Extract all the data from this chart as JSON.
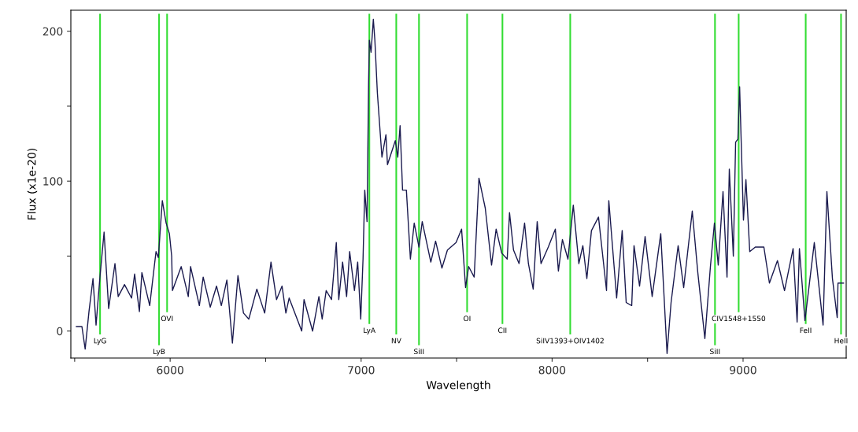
{
  "chart_data": {
    "type": "line",
    "xlabel": "Wavelength",
    "ylabel": "Flux (x1e-20)",
    "xlim": [
      5480,
      9540
    ],
    "ylim": [
      -18,
      214
    ],
    "xticks": [
      {
        "value": 5500,
        "label": null
      },
      6000,
      {
        "value": 6500,
        "label": null
      },
      7000,
      {
        "value": 7500,
        "label": null
      },
      8000,
      {
        "value": 8500,
        "label": null
      },
      9000
    ],
    "yticks": [
      0,
      {
        "value": 50,
        "label": null
      },
      100,
      {
        "value": 150,
        "label": null
      },
      200
    ],
    "grid": false,
    "legend": false,
    "marker": "none",
    "line_style": "solid",
    "series": [
      {
        "color": "#1a1a4e",
        "x": [
          5509,
          5538,
          5555,
          5575,
          5596,
          5612,
          5633,
          5654,
          5678,
          5711,
          5728,
          5761,
          5798,
          5814,
          5839,
          5852,
          5893,
          5926,
          5938,
          5959,
          5979,
          5996,
          6008,
          6012,
          6058,
          6095,
          6107,
          6153,
          6173,
          6210,
          6243,
          6268,
          6297,
          6326,
          6355,
          6384,
          6412,
          6454,
          6495,
          6528,
          6557,
          6586,
          6606,
          6623,
          6689,
          6701,
          6746,
          6779,
          6796,
          6817,
          6845,
          6870,
          6883,
          6903,
          6924,
          6940,
          6965,
          6982,
          6998,
          7010,
          7019,
          7031,
          7039,
          7043,
          7052,
          7064,
          7072,
          7085,
          7109,
          7130,
          7138,
          7179,
          7192,
          7204,
          7217,
          7237,
          7258,
          7278,
          7303,
          7320,
          7365,
          7390,
          7423,
          7452,
          7497,
          7526,
          7547,
          7563,
          7592,
          7617,
          7650,
          7683,
          7707,
          7736,
          7765,
          7777,
          7798,
          7827,
          7856,
          7876,
          7901,
          7922,
          7942,
          7980,
          8017,
          8033,
          8054,
          8083,
          8111,
          8140,
          8161,
          8182,
          8206,
          8243,
          8285,
          8297,
          8338,
          8367,
          8388,
          8417,
          8429,
          8458,
          8487,
          8524,
          8569,
          8602,
          8623,
          8660,
          8689,
          8734,
          8763,
          8800,
          8829,
          8850,
          8870,
          8895,
          8916,
          8928,
          8949,
          8961,
          8973,
          8982,
          9002,
          9015,
          9035,
          9064,
          9109,
          9138,
          9180,
          9217,
          9262,
          9283,
          9295,
          9324,
          9373,
          9419,
          9439,
          9468,
          9493,
          9497,
          9526
        ],
        "values": [
          3,
          3,
          -12,
          13,
          35,
          4,
          37,
          66,
          15,
          45,
          23,
          31,
          22,
          38,
          13,
          39,
          17,
          53,
          49,
          87,
          72,
          65,
          50,
          27,
          43,
          23,
          43,
          17,
          36,
          16,
          30,
          17,
          34,
          -8,
          37,
          12,
          8,
          28,
          12,
          46,
          21,
          30,
          12,
          22,
          0,
          21,
          0,
          23,
          8,
          27,
          21,
          59,
          21,
          46,
          23,
          53,
          27,
          46,
          8,
          48,
          94,
          73,
          164,
          194,
          186,
          208,
          194,
          159,
          116,
          131,
          111,
          127,
          116,
          137,
          94,
          94,
          48,
          72,
          56,
          73,
          46,
          60,
          42,
          54,
          59,
          68,
          29,
          43,
          36,
          102,
          82,
          44,
          68,
          52,
          48,
          79,
          54,
          45,
          72,
          45,
          28,
          73,
          45,
          56,
          68,
          40,
          61,
          48,
          84,
          45,
          57,
          35,
          67,
          76,
          27,
          87,
          22,
          67,
          19,
          17,
          57,
          30,
          63,
          23,
          65,
          -15,
          19,
          57,
          29,
          80,
          39,
          -5,
          43,
          72,
          44,
          93,
          36,
          108,
          50,
          126,
          128,
          163,
          74,
          101,
          53,
          56,
          56,
          32,
          47,
          27,
          55,
          6,
          55,
          7,
          59,
          4,
          93,
          35,
          9,
          32,
          32
        ]
      }
    ],
    "ref_lines": [
      {
        "axis": "x",
        "value": 5633,
        "label": "LyG",
        "color": "#33dd33"
      },
      {
        "axis": "x",
        "value": 5942,
        "label": "LyB",
        "color": "#33dd33"
      },
      {
        "axis": "x",
        "value": 5984,
        "label": "OVI",
        "color": "#33dd33"
      },
      {
        "axis": "x",
        "value": 7043,
        "label": "LyA",
        "color": "#33dd33"
      },
      {
        "axis": "x",
        "value": 7184,
        "label": "NV",
        "color": "#33dd33"
      },
      {
        "axis": "x",
        "value": 7303,
        "label": "SiII",
        "color": "#33dd33"
      },
      {
        "axis": "x",
        "value": 7555,
        "label": "OI",
        "color": "#33dd33"
      },
      {
        "axis": "x",
        "value": 7740,
        "label": "CII",
        "color": "#33dd33"
      },
      {
        "axis": "x",
        "value": 8095,
        "label": "SiIV1393+OIV1402",
        "color": "#33dd33"
      },
      {
        "axis": "x",
        "value": 8853,
        "label": "SiII",
        "color": "#33dd33"
      },
      {
        "axis": "x",
        "value": 8977,
        "label": "CIV1548+1550",
        "color": "#33dd33"
      },
      {
        "axis": "x",
        "value": 9328,
        "label": "FeII",
        "color": "#33dd33"
      },
      {
        "axis": "x",
        "value": 9513,
        "label": "HeII",
        "color": "#33dd33"
      }
    ]
  }
}
